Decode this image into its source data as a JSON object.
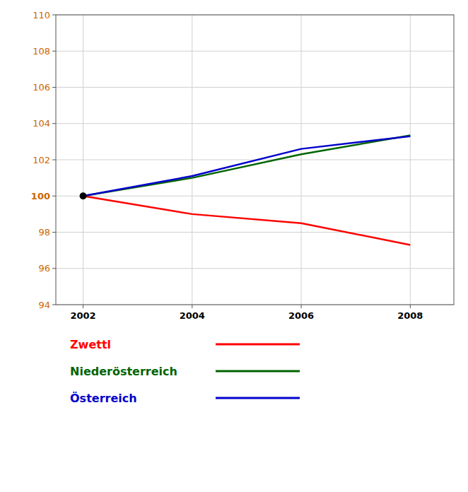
{
  "chart_data": {
    "type": "line",
    "x": [
      2002,
      2004,
      2006,
      2008
    ],
    "series": [
      {
        "name": "Zwettl",
        "color": "#ff0000",
        "values": [
          100.0,
          99.0,
          98.5,
          97.3
        ]
      },
      {
        "name": "Niederösterreich",
        "color": "#006400",
        "values": [
          100.0,
          101.0,
          102.3,
          103.35
        ]
      },
      {
        "name": "Österreich",
        "color": "#0000cc",
        "values": [
          100.0,
          101.1,
          102.6,
          103.3
        ]
      }
    ],
    "highlight": {
      "x": 2002,
      "y": 100,
      "color": "#000000",
      "marker": "circle"
    },
    "xlim": [
      2001.5,
      2008.8
    ],
    "xticks": [
      2002,
      2004,
      2006,
      2008
    ],
    "ylim": [
      94,
      110
    ],
    "yticks": [
      94,
      96,
      98,
      100,
      102,
      104,
      106,
      108,
      110
    ],
    "grid": true,
    "legend": "bottom"
  }
}
